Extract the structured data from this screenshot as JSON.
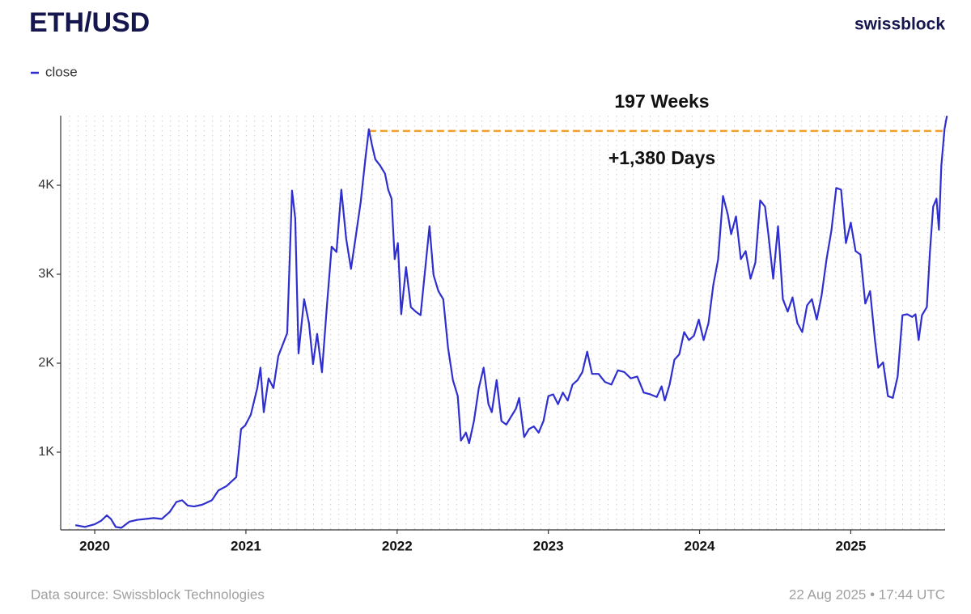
{
  "brand": "swissblock",
  "footer": {
    "source": "Data source: Swissblock Technologies",
    "timestamp": "22 Aug 2025 • 17:44 UTC"
  },
  "chart_data": {
    "type": "line",
    "title": "ETH/USD",
    "legend": "top-left",
    "grid": true,
    "xlim": [
      2019.775,
      2025.64
    ],
    "xticks": [
      2020,
      2021,
      2022,
      2023,
      2024,
      2025
    ],
    "ylim": [
      127,
      4782
    ],
    "yticks": [
      {
        "value": 1000,
        "label": "1K"
      },
      {
        "value": 2000,
        "label": "2K"
      },
      {
        "value": 3000,
        "label": "3K"
      },
      {
        "value": 4000,
        "label": "4K"
      }
    ],
    "x": [
      2019.872,
      2019.936,
      2020.0,
      2020.043,
      2020.08,
      2020.107,
      2020.139,
      2020.176,
      2020.23,
      2020.283,
      2020.337,
      2020.39,
      2020.444,
      2020.497,
      2020.54,
      2020.578,
      2020.615,
      2020.658,
      2020.711,
      2020.775,
      2020.818,
      2020.872,
      2020.936,
      2020.968,
      2020.995,
      2021.032,
      2021.075,
      2021.096,
      2021.118,
      2021.15,
      2021.182,
      2021.214,
      2021.246,
      2021.273,
      2021.305,
      2021.326,
      2021.348,
      2021.385,
      2021.417,
      2021.444,
      2021.471,
      2021.503,
      2021.535,
      2021.567,
      2021.599,
      2021.631,
      2021.663,
      2021.695,
      2021.727,
      2021.759,
      2021.791,
      2021.813,
      2021.834,
      2021.856,
      2021.888,
      2021.92,
      2021.941,
      2021.963,
      2021.984,
      2022.005,
      2022.027,
      2022.059,
      2022.091,
      2022.123,
      2022.155,
      2022.187,
      2022.214,
      2022.241,
      2022.273,
      2022.305,
      2022.337,
      2022.369,
      2022.401,
      2022.422,
      2022.455,
      2022.476,
      2022.508,
      2022.54,
      2022.572,
      2022.604,
      2022.626,
      2022.658,
      2022.69,
      2022.722,
      2022.754,
      2022.786,
      2022.807,
      2022.84,
      2022.872,
      2022.904,
      2022.936,
      2022.968,
      2023.0,
      2023.032,
      2023.064,
      2023.096,
      2023.128,
      2023.16,
      2023.193,
      2023.225,
      2023.257,
      2023.289,
      2023.332,
      2023.374,
      2023.417,
      2023.46,
      2023.503,
      2023.545,
      2023.588,
      2023.631,
      2023.674,
      2023.717,
      2023.749,
      2023.77,
      2023.802,
      2023.834,
      2023.866,
      2023.898,
      2023.93,
      2023.963,
      2023.995,
      2024.027,
      2024.059,
      2024.091,
      2024.123,
      2024.155,
      2024.187,
      2024.209,
      2024.241,
      2024.273,
      2024.305,
      2024.337,
      2024.369,
      2024.401,
      2024.433,
      2024.455,
      2024.487,
      2024.519,
      2024.551,
      2024.583,
      2024.615,
      2024.647,
      2024.679,
      2024.711,
      2024.743,
      2024.775,
      2024.807,
      2024.84,
      2024.872,
      2024.904,
      2024.936,
      2024.968,
      2025.0,
      2025.032,
      2025.064,
      2025.096,
      2025.128,
      2025.16,
      2025.182,
      2025.214,
      2025.246,
      2025.278,
      2025.31,
      2025.342,
      2025.374,
      2025.406,
      2025.428,
      2025.449,
      2025.471,
      2025.503,
      2025.524,
      2025.545,
      2025.567,
      2025.583,
      2025.599,
      2025.62,
      2025.636
    ],
    "series": [
      {
        "name": "close",
        "color": "#2f2fcf",
        "values": [
          180,
          160,
          190,
          230,
          290,
          250,
          160,
          150,
          220,
          240,
          250,
          260,
          250,
          330,
          440,
          460,
          400,
          390,
          410,
          460,
          570,
          620,
          720,
          1260,
          1300,
          1420,
          1720,
          1950,
          1450,
          1830,
          1720,
          2080,
          2220,
          2340,
          3940,
          3630,
          2110,
          2720,
          2450,
          1990,
          2330,
          1900,
          2630,
          3310,
          3250,
          3950,
          3400,
          3060,
          3430,
          3810,
          4310,
          4630,
          4450,
          4290,
          4220,
          4130,
          3950,
          3850,
          3170,
          3350,
          2550,
          3080,
          2630,
          2580,
          2540,
          3080,
          3540,
          2990,
          2810,
          2720,
          2170,
          1810,
          1630,
          1130,
          1220,
          1100,
          1350,
          1720,
          1950,
          1540,
          1450,
          1810,
          1350,
          1310,
          1400,
          1490,
          1610,
          1170,
          1260,
          1290,
          1220,
          1350,
          1630,
          1650,
          1540,
          1670,
          1580,
          1760,
          1810,
          1900,
          2130,
          1880,
          1880,
          1790,
          1760,
          1920,
          1900,
          1830,
          1850,
          1670,
          1650,
          1620,
          1740,
          1580,
          1760,
          2040,
          2100,
          2350,
          2260,
          2310,
          2490,
          2260,
          2450,
          2880,
          3170,
          3880,
          3670,
          3450,
          3650,
          3170,
          3260,
          2950,
          3130,
          3830,
          3760,
          3450,
          2950,
          3540,
          2720,
          2580,
          2740,
          2450,
          2350,
          2650,
          2720,
          2490,
          2760,
          3170,
          3490,
          3970,
          3950,
          3350,
          3580,
          3260,
          3220,
          2670,
          2810,
          2260,
          1950,
          2010,
          1630,
          1610,
          1850,
          2540,
          2550,
          2520,
          2550,
          2260,
          2540,
          2630,
          3260,
          3760,
          3850,
          3500,
          4220,
          4630,
          4780
        ]
      }
    ],
    "reference_line": {
      "value": 4610,
      "x_start": 2021.813,
      "x_end": 2025.636,
      "color": "#f0a030"
    },
    "annotations": [
      "197 Weeks",
      "+1,380 Days"
    ]
  }
}
